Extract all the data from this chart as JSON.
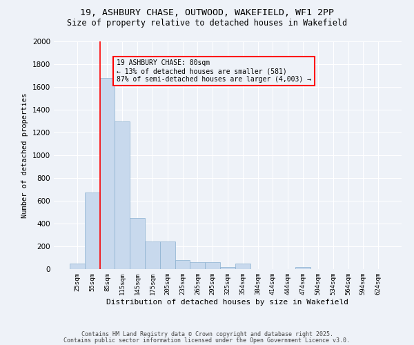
{
  "title_line1": "19, ASHBURY CHASE, OUTWOOD, WAKEFIELD, WF1 2PP",
  "title_line2": "Size of property relative to detached houses in Wakefield",
  "xlabel": "Distribution of detached houses by size in Wakefield",
  "ylabel": "Number of detached properties",
  "footnote1": "Contains HM Land Registry data © Crown copyright and database right 2025.",
  "footnote2": "Contains public sector information licensed under the Open Government Licence v3.0.",
  "annotation_line1": "19 ASHBURY CHASE: 80sqm",
  "annotation_line2": "← 13% of detached houses are smaller (581)",
  "annotation_line3": "87% of semi-detached houses are larger (4,003) →",
  "bar_color": "#c8d9ed",
  "bar_edge_color": "#8ab0d0",
  "vline_color": "red",
  "annotation_box_edge": "red",
  "background_color": "#eef2f8",
  "categories": [
    "25sqm",
    "55sqm",
    "85sqm",
    "115sqm",
    "145sqm",
    "175sqm",
    "205sqm",
    "235sqm",
    "265sqm",
    "295sqm",
    "325sqm",
    "354sqm",
    "384sqm",
    "414sqm",
    "444sqm",
    "474sqm",
    "504sqm",
    "534sqm",
    "564sqm",
    "594sqm",
    "624sqm"
  ],
  "values": [
    50,
    670,
    1680,
    1300,
    450,
    240,
    240,
    80,
    60,
    60,
    20,
    50,
    0,
    0,
    0,
    18,
    0,
    0,
    0,
    0,
    0
  ],
  "ylim": [
    0,
    2000
  ],
  "yticks": [
    0,
    200,
    400,
    600,
    800,
    1000,
    1200,
    1400,
    1600,
    1800,
    2000
  ],
  "vline_x": 1.5,
  "figsize": [
    6.0,
    5.0
  ],
  "dpi": 100
}
